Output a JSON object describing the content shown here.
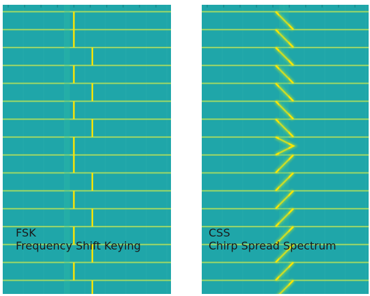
{
  "left_panel": {
    "abbrev": "FSK",
    "full_name": "Frequency Shift Keying"
  },
  "right_panel": {
    "abbrev": "CSS",
    "full_name": "Chirp  Spread  Spectrum"
  },
  "colors": {
    "background": "#1fa6a9",
    "bright_line": "#ffe600",
    "line_glow": "#9ad64a",
    "gridline": "#33b3b3"
  }
}
